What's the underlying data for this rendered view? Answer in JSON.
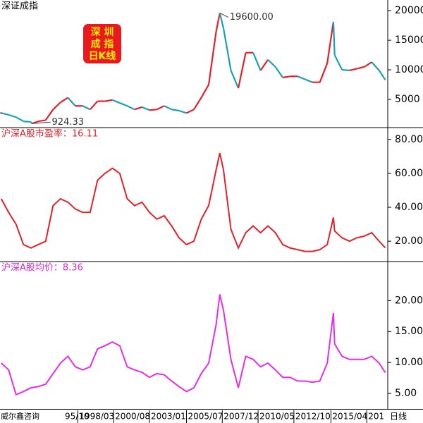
{
  "x_axis": {
    "xlim": [
      "1992/12",
      "2019/02"
    ],
    "xticks": [
      {
        "value": "1995/10",
        "label": "95/10"
      },
      "1998/03",
      "2000/08",
      "2003/01",
      "2005/07",
      "2007/12",
      "2010/05",
      "2012/10",
      "2015/04",
      {
        "value": "2017/09",
        "label": "201"
      }
    ]
  },
  "footer": {
    "source": "威尔鑫咨询",
    "period": "日线"
  },
  "chart_data": [
    {
      "type": "candle-line",
      "title": "深证成指",
      "badge": [
        "深  圳",
        "成  指",
        "日K线"
      ],
      "up_color": "#e3212b",
      "down_color": "#1b9fb2",
      "title_color": "#000000",
      "x": [
        "1993/01",
        "1993/07",
        "1994/01",
        "1994/07",
        "1995/01",
        "1995/02",
        "1995/07",
        "1996/01",
        "1996/07",
        "1997/01",
        "1997/07",
        "1998/01",
        "1998/07",
        "1999/01",
        "1999/07",
        "2000/01",
        "2000/07",
        "2001/01",
        "2001/07",
        "2002/01",
        "2002/07",
        "2003/01",
        "2003/07",
        "2004/01",
        "2004/07",
        "2005/01",
        "2005/07",
        "2006/01",
        "2006/07",
        "2007/01",
        "2007/07",
        "2007/10",
        "2008/01",
        "2008/07",
        "2009/01",
        "2009/07",
        "2010/01",
        "2010/07",
        "2011/01",
        "2011/07",
        "2012/01",
        "2012/07",
        "2013/01",
        "2013/07",
        "2014/01",
        "2014/07",
        "2015/01",
        "2015/06",
        "2015/07",
        "2016/01",
        "2016/07",
        "2017/01",
        "2017/07",
        "2018/01",
        "2018/07",
        "2018/12"
      ],
      "values": [
        2700,
        2400,
        2000,
        1300,
        1200,
        924.33,
        1300,
        1500,
        3300,
        4500,
        5300,
        3900,
        3900,
        3300,
        4700,
        4700,
        4900,
        4400,
        3900,
        3300,
        3700,
        3200,
        3300,
        3900,
        3300,
        3100,
        2700,
        3300,
        5300,
        7500,
        16400,
        19600,
        17000,
        9900,
        6900,
        12900,
        12900,
        9900,
        11700,
        10500,
        8700,
        8900,
        8900,
        8400,
        7900,
        7900,
        11100,
        18100,
        12500,
        10000,
        9900,
        10200,
        10500,
        11300,
        9900,
        8300
      ],
      "annotations": [
        {
          "label": "19600.00",
          "x": "2007/10",
          "value": 19600
        },
        {
          "label": "924.33",
          "x": "1995/02",
          "value": 924.33
        }
      ],
      "ylim": [
        240,
        21800
      ],
      "yticks": [
        5000,
        10000,
        15000,
        20000
      ]
    },
    {
      "type": "line",
      "title": "沪深A股市盈率：16.11",
      "color": "#e3212b",
      "title_color": "#e3212b",
      "x": [
        "1993/01",
        "1993/07",
        "1994/01",
        "1994/07",
        "1995/01",
        "1995/07",
        "1996/01",
        "1996/07",
        "1997/01",
        "1997/07",
        "1998/01",
        "1998/07",
        "1999/01",
        "1999/07",
        "2000/01",
        "2000/07",
        "2001/01",
        "2001/07",
        "2002/01",
        "2002/07",
        "2003/01",
        "2003/07",
        "2004/01",
        "2004/07",
        "2005/01",
        "2005/07",
        "2006/01",
        "2006/07",
        "2007/01",
        "2007/07",
        "2007/10",
        "2008/01",
        "2008/07",
        "2009/01",
        "2009/07",
        "2010/01",
        "2010/07",
        "2011/01",
        "2011/07",
        "2012/01",
        "2012/07",
        "2013/01",
        "2013/07",
        "2014/01",
        "2014/07",
        "2015/01",
        "2015/06",
        "2015/07",
        "2016/01",
        "2016/07",
        "2017/01",
        "2017/07",
        "2018/01",
        "2018/07",
        "2018/12"
      ],
      "values": [
        45,
        37,
        30,
        18,
        16,
        18,
        20,
        41,
        45,
        43,
        39,
        37,
        37,
        56,
        60,
        63,
        60,
        45,
        41,
        43,
        37,
        33,
        35,
        29,
        22,
        18,
        20,
        33,
        41,
        62,
        72,
        62,
        27,
        16,
        25,
        29,
        25,
        29,
        25,
        18,
        16,
        15,
        14,
        14,
        15,
        18,
        34,
        26,
        22,
        20,
        22,
        23,
        25,
        20,
        16.11
      ],
      "ylim": [
        8,
        87
      ],
      "yticks": [
        {
          "value": 20,
          "label": "20.00"
        },
        {
          "value": 40,
          "label": "40.00"
        },
        {
          "value": 60,
          "label": "60.00"
        },
        {
          "value": 80,
          "label": "80.00"
        }
      ]
    },
    {
      "type": "line",
      "title": "沪深A股均价：8.36",
      "color": "#e62ee6",
      "title_color": "#d22ad2",
      "x": [
        "1993/01",
        "1993/07",
        "1994/01",
        "1994/07",
        "1995/01",
        "1995/07",
        "1996/01",
        "1996/07",
        "1997/01",
        "1997/07",
        "1998/01",
        "1998/07",
        "1999/01",
        "1999/07",
        "2000/01",
        "2000/07",
        "2001/01",
        "2001/07",
        "2002/01",
        "2002/07",
        "2003/01",
        "2003/07",
        "2004/01",
        "2004/07",
        "2005/01",
        "2005/07",
        "2006/01",
        "2006/07",
        "2007/01",
        "2007/07",
        "2007/10",
        "2008/01",
        "2008/07",
        "2009/01",
        "2009/07",
        "2010/01",
        "2010/07",
        "2011/01",
        "2011/07",
        "2012/01",
        "2012/07",
        "2013/01",
        "2013/07",
        "2014/01",
        "2014/07",
        "2015/01",
        "2015/06",
        "2015/07",
        "2016/01",
        "2016/07",
        "2017/01",
        "2017/07",
        "2018/01",
        "2018/07",
        "2018/12"
      ],
      "values": [
        9.9,
        8.8,
        4.8,
        5.3,
        5.9,
        6.1,
        6.5,
        8.2,
        9.9,
        11,
        9.3,
        8.8,
        9.3,
        12.2,
        12.7,
        13.3,
        12.7,
        9.3,
        8.8,
        8.4,
        7.6,
        8.2,
        8,
        7,
        6.1,
        5.3,
        5.9,
        8.2,
        9.9,
        16.1,
        21,
        18.4,
        10.5,
        5.9,
        11,
        10.5,
        9.3,
        9.9,
        8.8,
        7.6,
        7.6,
        7,
        7,
        6.8,
        7,
        9.9,
        18,
        13,
        11,
        10.5,
        10.5,
        10.5,
        11,
        9.9,
        8.36
      ],
      "ylim": [
        2.5,
        26.3
      ],
      "yticks": [
        {
          "value": 5,
          "label": "5.00"
        },
        {
          "value": 10,
          "label": "10.00"
        },
        {
          "value": 15,
          "label": "15.00"
        },
        {
          "value": 20,
          "label": "20.00"
        }
      ]
    }
  ]
}
